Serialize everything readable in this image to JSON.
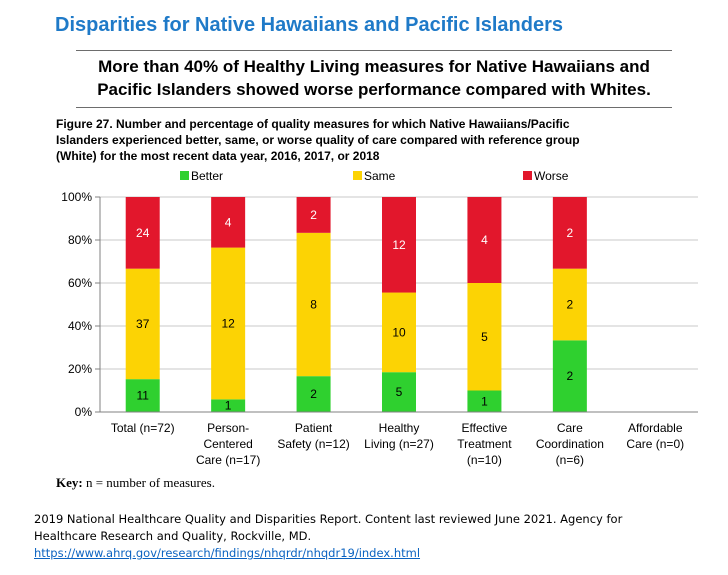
{
  "page": {
    "title": "Disparities for Native Hawaiians and Pacific Islanders",
    "subtitle_lines": [
      "More than 40% of Healthy Living measures for Native Hawaiians and",
      "Pacific Islanders showed worse performance compared with Whites."
    ],
    "figure_caption_lines": [
      "Figure 27. Number and percentage of quality measures for which Native Hawaiians/Pacific",
      "Islanders experienced better, same, or worse quality of care compared with reference group",
      "(White) for the most recent data year, 2016, 2017, or 2018"
    ],
    "key_label": "Key:",
    "key_text": " n = number of measures.",
    "source_lines": [
      "2019 National Healthcare Quality and Disparities Report. Content last reviewed June 2021. Agency for",
      "Healthcare Research and Quality, Rockville, MD."
    ],
    "source_link": "https://www.ahrq.gov/research/findings/nhqrdr/nhqdr19/index.html"
  },
  "colors": {
    "better": "#2fd02f",
    "same": "#fcd304",
    "worse": "#e2172c",
    "title": "#1f7ac8"
  },
  "chart_data": {
    "type": "bar",
    "stacked": true,
    "categories": [
      [
        "Total (n=72)"
      ],
      [
        "Person-",
        "Centered",
        "Care (n=17)"
      ],
      [
        "Patient",
        "Safety (n=12)"
      ],
      [
        "Healthy",
        "Living (n=27)"
      ],
      [
        "Effective",
        "Treatment",
        "(n=10)"
      ],
      [
        "Care",
        "Coordination",
        "(n=6)"
      ],
      [
        "Affordable",
        "Care (n=0)"
      ]
    ],
    "series": [
      {
        "name": "Better",
        "color": "#2fd02f",
        "values": [
          11,
          1,
          2,
          5,
          1,
          2,
          0
        ]
      },
      {
        "name": "Same",
        "color": "#fcd304",
        "values": [
          37,
          12,
          8,
          10,
          5,
          2,
          0
        ]
      },
      {
        "name": "Worse",
        "color": "#e2172c",
        "values": [
          24,
          4,
          2,
          12,
          4,
          2,
          0
        ]
      }
    ],
    "ylim": [
      0,
      100
    ],
    "yticks": [
      "0%",
      "20%",
      "40%",
      "60%",
      "80%",
      "100%"
    ],
    "ylabel": "",
    "xlabel": "",
    "legend_position": "top",
    "grid": true
  }
}
